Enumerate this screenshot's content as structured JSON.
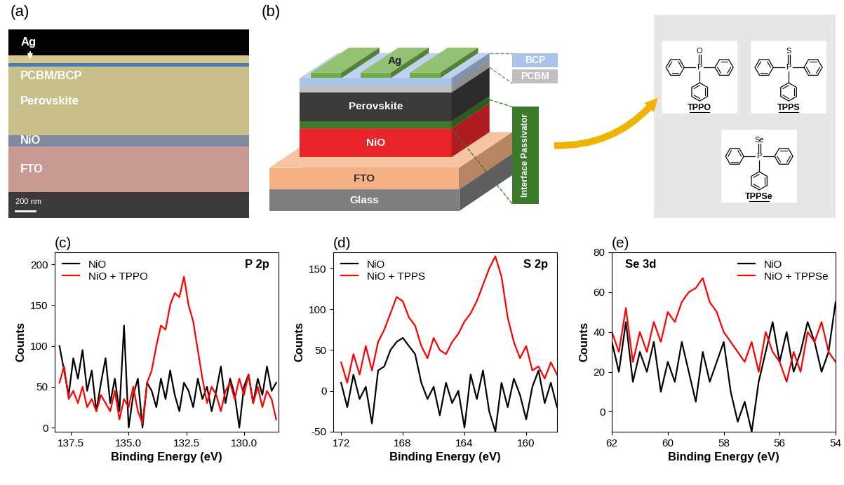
{
  "figure": {
    "panel_a": {
      "label": "(a)",
      "layers": [
        "Ag",
        "PCBM/BCP",
        "Perovskite",
        "NiO",
        "FTO"
      ],
      "scale_bar": "200 nm"
    },
    "panel_b": {
      "label": "(b)",
      "layers": [
        "Glass",
        "FTO",
        "NiO",
        "Perovskite"
      ],
      "top_electrode": "Ag",
      "side_labels": [
        "BCP",
        "PCBM"
      ],
      "passivator": "Interface Passivator",
      "molecules": [
        {
          "name": "TPPO",
          "center": "P",
          "double_bond": "O"
        },
        {
          "name": "TPPS",
          "center": "P",
          "double_bond": "S"
        },
        {
          "name": "TPPSe",
          "center": "P",
          "double_bond": "Se"
        }
      ]
    }
  },
  "chart_data": [
    {
      "type": "line",
      "title": "(c)",
      "annotation": "P 2p",
      "x_label": "Binding Energy (eV)",
      "y_label": "Counts",
      "xlim": [
        138.2,
        128.5
      ],
      "xticks": [
        137.5,
        135.0,
        132.5,
        130.0
      ],
      "ylim": [
        -5,
        215
      ],
      "yticks": [
        0,
        50,
        100,
        150,
        200
      ],
      "legend": "upper left",
      "x": [
        138.0,
        137.8,
        137.6,
        137.4,
        137.2,
        137.0,
        136.8,
        136.6,
        136.4,
        136.2,
        136.0,
        135.8,
        135.6,
        135.4,
        135.2,
        135.0,
        134.8,
        134.6,
        134.4,
        134.2,
        134.0,
        133.8,
        133.6,
        133.4,
        133.2,
        133.0,
        132.8,
        132.6,
        132.4,
        132.2,
        132.0,
        131.8,
        131.6,
        131.4,
        131.2,
        131.0,
        130.8,
        130.6,
        130.4,
        130.2,
        130.0,
        129.8,
        129.6,
        129.4,
        129.2,
        129.0,
        128.8,
        128.6
      ],
      "series": [
        {
          "name": "NiO",
          "color": "#000000",
          "values": [
            100,
            70,
            40,
            85,
            60,
            95,
            45,
            70,
            20,
            55,
            85,
            30,
            60,
            20,
            125,
            0,
            40,
            60,
            0,
            55,
            45,
            25,
            60,
            35,
            70,
            40,
            20,
            55,
            45,
            25,
            60,
            35,
            50,
            20,
            45,
            75,
            30,
            60,
            40,
            0,
            50,
            65,
            30,
            60,
            40,
            75,
            45,
            55
          ]
        },
        {
          "name": "NiO + TPPO",
          "color": "#ff0000",
          "values": [
            55,
            75,
            35,
            45,
            30,
            50,
            25,
            35,
            20,
            40,
            30,
            20,
            45,
            10,
            35,
            25,
            50,
            20,
            5,
            55,
            70,
            100,
            125,
            120,
            150,
            165,
            160,
            185,
            150,
            130,
            95,
            60,
            30,
            50,
            40,
            20,
            45,
            55,
            35,
            60,
            40,
            65,
            30,
            50,
            25,
            45,
            35,
            10
          ]
        }
      ]
    },
    {
      "type": "line",
      "title": "(d)",
      "annotation": "S 2p",
      "x_label": "Binding Energy (eV)",
      "y_label": "Counts",
      "xlim": [
        172.5,
        158.0
      ],
      "xticks": [
        172,
        168,
        164,
        160
      ],
      "ylim": [
        -50,
        170
      ],
      "yticks": [
        -50,
        0,
        50,
        100,
        150
      ],
      "legend": "upper left",
      "x": [
        172.0,
        171.6,
        171.2,
        170.8,
        170.4,
        170.0,
        169.6,
        169.2,
        168.8,
        168.4,
        168.0,
        167.6,
        167.2,
        166.8,
        166.4,
        166.0,
        165.6,
        165.2,
        164.8,
        164.4,
        164.0,
        163.6,
        163.2,
        162.8,
        162.4,
        162.0,
        161.6,
        161.2,
        160.8,
        160.4,
        160.0,
        159.6,
        159.2,
        158.8,
        158.4,
        158.0
      ],
      "series": [
        {
          "name": "NiO",
          "color": "#000000",
          "values": [
            10,
            -20,
            20,
            -10,
            5,
            -40,
            25,
            30,
            50,
            60,
            65,
            55,
            45,
            10,
            -10,
            5,
            -30,
            10,
            -15,
            0,
            -45,
            20,
            -10,
            25,
            -25,
            -50,
            10,
            -20,
            15,
            -5,
            -35,
            5,
            25,
            -15,
            10,
            -20
          ]
        },
        {
          "name": "NiO + TPPS",
          "color": "#ff0000",
          "values": [
            35,
            10,
            45,
            20,
            55,
            25,
            60,
            75,
            95,
            115,
            110,
            90,
            80,
            55,
            40,
            65,
            50,
            45,
            60,
            70,
            85,
            95,
            110,
            130,
            150,
            165,
            140,
            90,
            60,
            40,
            55,
            25,
            30,
            15,
            35,
            20
          ]
        }
      ]
    },
    {
      "type": "line",
      "title": "(e)",
      "annotation": "Se 3d",
      "x_label": "Binding Energy (eV)",
      "y_label": "Counts",
      "xlim": [
        62,
        54
      ],
      "xticks": [
        62,
        60,
        58,
        56,
        54
      ],
      "ylim": [
        -10,
        80
      ],
      "yticks": [
        0,
        20,
        40,
        60,
        80
      ],
      "legend": "upper right",
      "x": [
        62.0,
        61.75,
        61.5,
        61.25,
        61.0,
        60.75,
        60.5,
        60.25,
        60.0,
        59.75,
        59.5,
        59.25,
        59.0,
        58.75,
        58.5,
        58.25,
        58.0,
        57.75,
        57.5,
        57.25,
        57.0,
        56.75,
        56.5,
        56.25,
        56.0,
        55.75,
        55.5,
        55.25,
        55.0,
        54.75,
        54.5,
        54.25,
        54.0
      ],
      "series": [
        {
          "name": "NiO",
          "color": "#000000",
          "values": [
            35,
            20,
            45,
            15,
            30,
            20,
            35,
            10,
            25,
            15,
            35,
            20,
            5,
            30,
            15,
            25,
            35,
            10,
            -5,
            5,
            -10,
            15,
            30,
            45,
            25,
            40,
            20,
            30,
            45,
            35,
            20,
            30,
            55
          ]
        },
        {
          "name": "NiO + TPPSe",
          "color": "#ff0000",
          "values": [
            40,
            30,
            52,
            25,
            40,
            30,
            45,
            35,
            50,
            45,
            55,
            60,
            62,
            67,
            55,
            50,
            40,
            35,
            30,
            25,
            35,
            20,
            40,
            30,
            25,
            15,
            30,
            20,
            40,
            35,
            45,
            30,
            25
          ]
        }
      ]
    }
  ]
}
